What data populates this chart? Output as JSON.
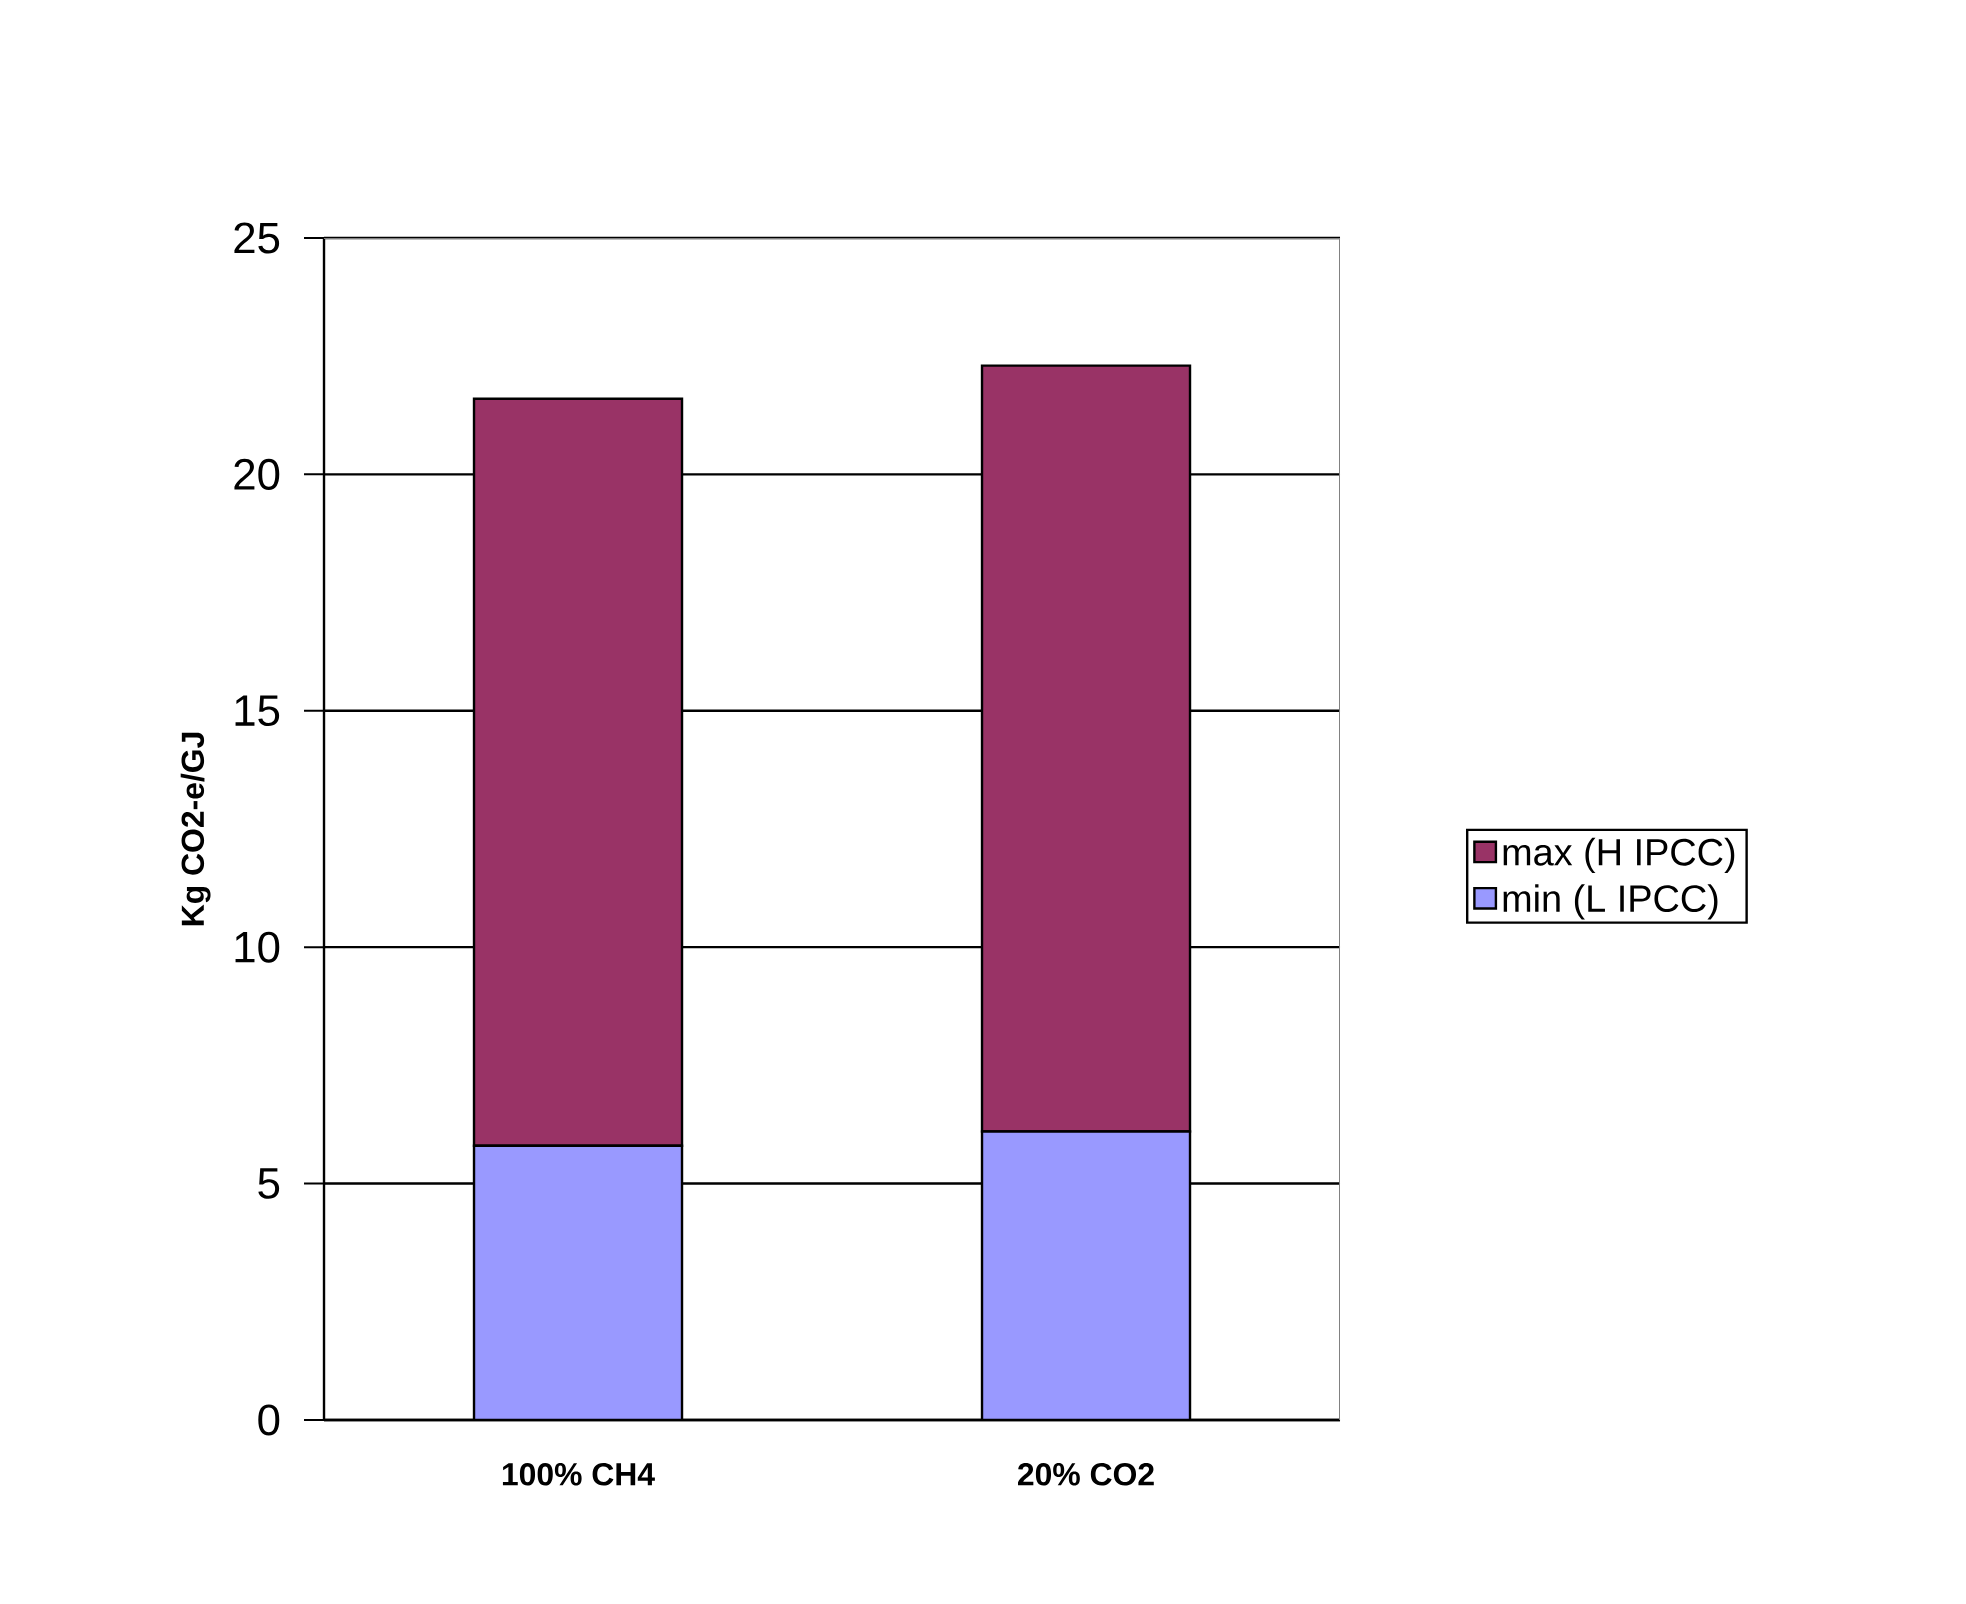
{
  "chart_data": {
    "type": "bar",
    "stacked": true,
    "ylabel": "Kg CO2-e/GJ",
    "categories": [
      "100% CH4",
      "20%  CO2"
    ],
    "series": [
      {
        "name": "min (L IPCC)",
        "color": "#9999ff",
        "values": [
          5.8,
          6.1
        ]
      },
      {
        "name": "max (H IPCC)",
        "color": "#993366",
        "values": [
          15.8,
          16.2
        ]
      }
    ],
    "ylim": [
      0,
      25
    ],
    "yticks": [
      0,
      5,
      10,
      15,
      20,
      25
    ],
    "grid": "y",
    "legend": "right"
  }
}
